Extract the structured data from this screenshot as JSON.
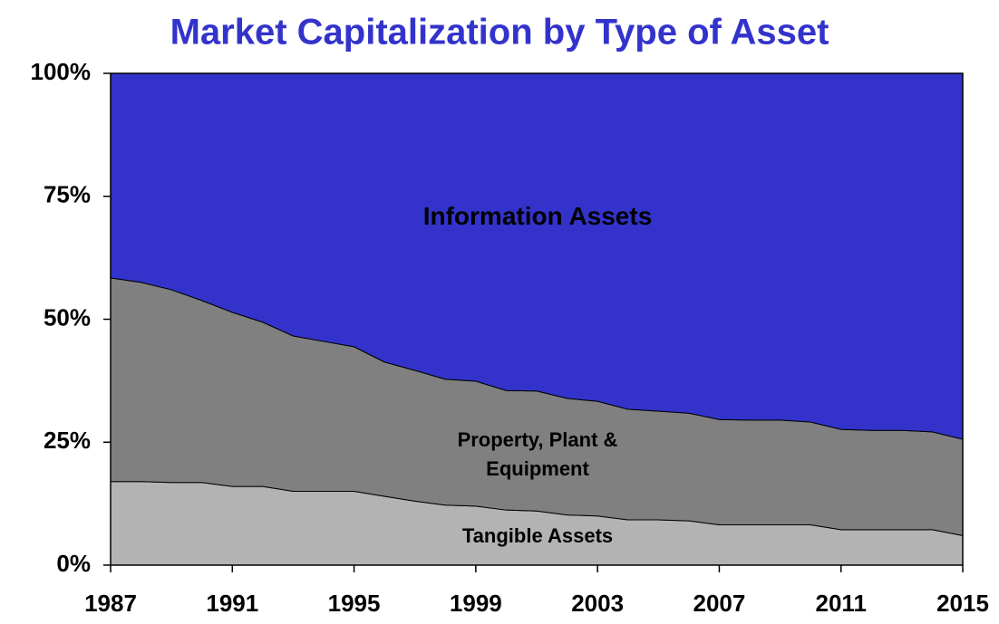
{
  "chart_data": {
    "type": "stacked_area",
    "title": "Market Capitalization by Type of Asset",
    "x": [
      1987,
      1988,
      1989,
      1990,
      1991,
      1992,
      1993,
      1994,
      1995,
      1996,
      1997,
      1998,
      1999,
      2000,
      2001,
      2002,
      2003,
      2004,
      2005,
      2006,
      2007,
      2008,
      2009,
      2010,
      2011,
      2012,
      2013,
      2014,
      2015
    ],
    "series": [
      {
        "name": "Tangible Assets",
        "color": "#b3b3b3",
        "values": [
          17,
          17,
          16.8,
          16.8,
          16,
          16,
          15,
          15,
          15,
          14,
          13,
          12.2,
          12,
          11.2,
          11,
          10.2,
          10,
          9.2,
          9.2,
          9,
          8.2,
          8.2,
          8.2,
          8.2,
          7.2,
          7.2,
          7.2,
          7.2,
          6
        ]
      },
      {
        "name": "Property, Plant & Equipment",
        "color": "#808080",
        "values": [
          41.4,
          40.5,
          39.2,
          37,
          35.4,
          33.4,
          31.6,
          30.5,
          29.4,
          27.3,
          26.6,
          25.6,
          25.4,
          24.3,
          24.4,
          23.7,
          23.3,
          22.5,
          22.1,
          21.9,
          21.4,
          21.3,
          21.3,
          20.9,
          20.4,
          20.2,
          20.2,
          19.9,
          19.6
        ]
      },
      {
        "name": "Information Assets",
        "color": "#3333cc",
        "values": [
          41.6,
          42.5,
          44,
          46.2,
          48.6,
          50.6,
          53.4,
          54.5,
          55.6,
          58.7,
          60.4,
          62.2,
          62.6,
          64.5,
          64.6,
          66.1,
          66.7,
          68.3,
          68.7,
          69.1,
          70.4,
          70.5,
          70.5,
          70.9,
          72.4,
          72.6,
          72.6,
          72.9,
          74.4
        ]
      }
    ],
    "xlim": [
      1987,
      2015
    ],
    "xticks": [
      1987,
      1991,
      1995,
      1999,
      2003,
      2007,
      2011,
      2015
    ],
    "ylim": [
      0,
      100
    ],
    "yticks": [
      {
        "value": 0,
        "label": "0%"
      },
      {
        "value": 25,
        "label": "25%"
      },
      {
        "value": 50,
        "label": "50%"
      },
      {
        "value": 75,
        "label": "75%"
      },
      {
        "value": 100,
        "label": "100%"
      }
    ]
  }
}
